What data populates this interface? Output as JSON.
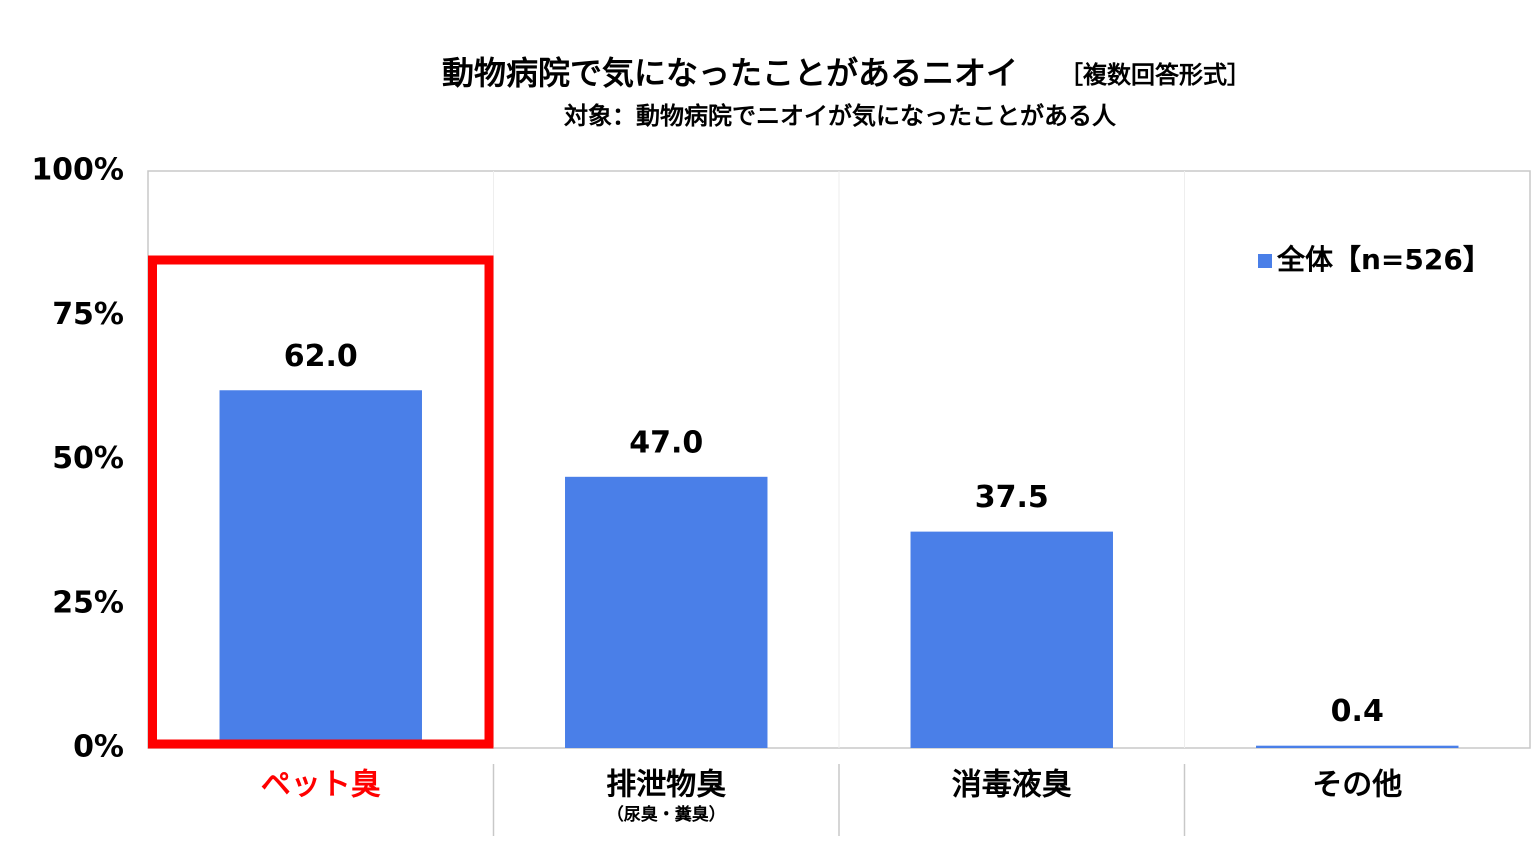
{
  "chart_data": {
    "type": "bar",
    "title": "動物病院で気になったことがあるニオイ",
    "title_note": "［複数回答形式］",
    "subtitle": "対象：動物病院でニオイが気になったことがある人",
    "categories": [
      "ペット臭",
      "排泄物臭",
      "消毒液臭",
      "その他"
    ],
    "category_sublabels": [
      null,
      "（尿臭・糞臭）",
      null,
      null
    ],
    "series": [
      {
        "name": "全体【n=526】",
        "color": "#4a7fe8",
        "values": [
          62.0,
          47.0,
          37.5,
          0.4
        ],
        "value_labels": [
          "62.0",
          "47.0",
          "37.5",
          "0.4"
        ]
      }
    ],
    "ylim": [
      0,
      100
    ],
    "yticks": [
      {
        "value": 0,
        "label": "0%"
      },
      {
        "value": 25,
        "label": "25%"
      },
      {
        "value": 50,
        "label": "50%"
      },
      {
        "value": 75,
        "label": "75%"
      },
      {
        "value": 100,
        "label": "100%"
      }
    ],
    "grid": false,
    "legend": "upper-right",
    "highlight": {
      "index": 0,
      "color": "#ff0000"
    }
  }
}
